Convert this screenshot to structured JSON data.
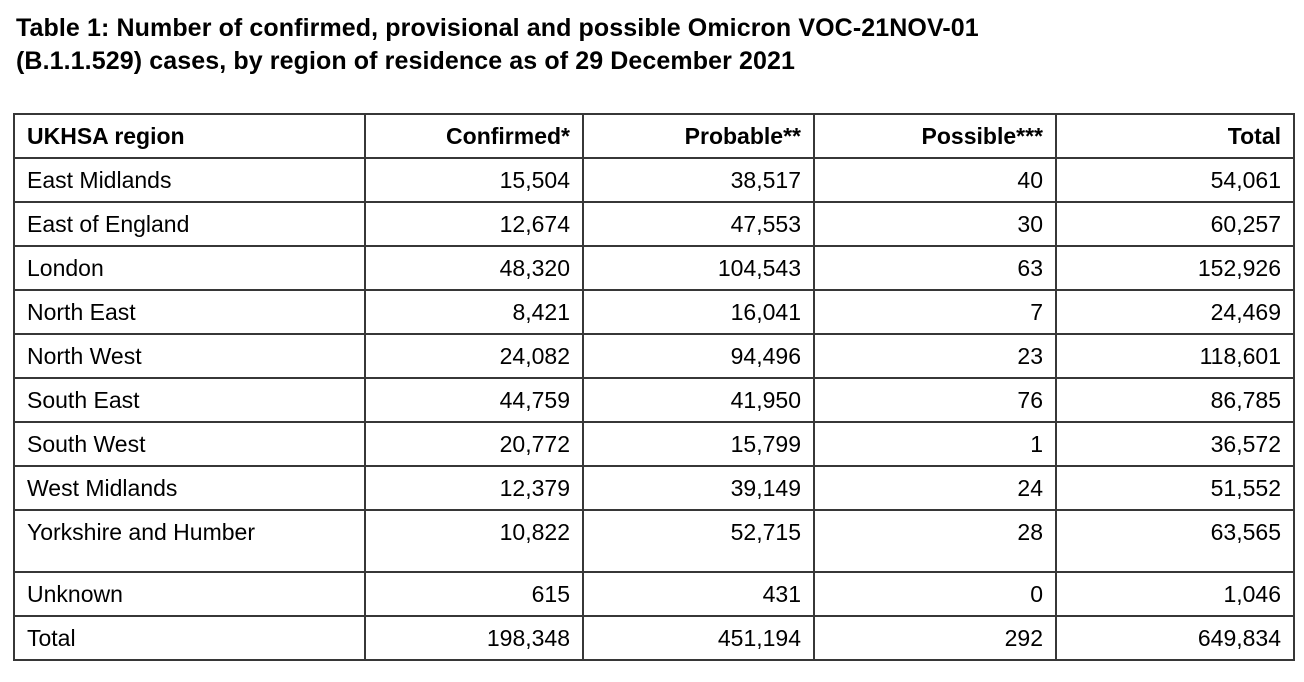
{
  "title": {
    "line1": "Table 1: Number of confirmed, provisional and possible Omicron VOC-21NOV-01",
    "line2": "(B.1.1.529) cases, by region of residence as of 29 December 2021"
  },
  "table": {
    "columns": [
      "UKHSA region",
      "Confirmed*",
      "Probable**",
      "Possible***",
      "Total"
    ],
    "rows": [
      {
        "region": "East Midlands",
        "confirmed": "15,504",
        "probable": "38,517",
        "possible": "40",
        "total": "54,061"
      },
      {
        "region": "East of England",
        "confirmed": "12,674",
        "probable": "47,553",
        "possible": "30",
        "total": "60,257"
      },
      {
        "region": "London",
        "confirmed": "48,320",
        "probable": "104,543",
        "possible": "63",
        "total": "152,926"
      },
      {
        "region": "North East",
        "confirmed": "8,421",
        "probable": "16,041",
        "possible": "7",
        "total": "24,469"
      },
      {
        "region": "North West",
        "confirmed": "24,082",
        "probable": "94,496",
        "possible": "23",
        "total": "118,601"
      },
      {
        "region": "South East",
        "confirmed": "44,759",
        "probable": "41,950",
        "possible": "76",
        "total": "86,785"
      },
      {
        "region": "South West",
        "confirmed": "20,772",
        "probable": "15,799",
        "possible": "1",
        "total": "36,572"
      },
      {
        "region": "West Midlands",
        "confirmed": "12,379",
        "probable": "39,149",
        "possible": "24",
        "total": "51,552"
      },
      {
        "region": "Yorkshire and Humber",
        "confirmed": "10,822",
        "probable": "52,715",
        "possible": "28",
        "total": "63,565"
      },
      {
        "region": "Unknown",
        "confirmed": "615",
        "probable": "431",
        "possible": "0",
        "total": "1,046"
      }
    ],
    "totals": {
      "region": "Total",
      "confirmed": "198,348",
      "probable": "451,194",
      "possible": "292",
      "total": "649,834"
    }
  }
}
